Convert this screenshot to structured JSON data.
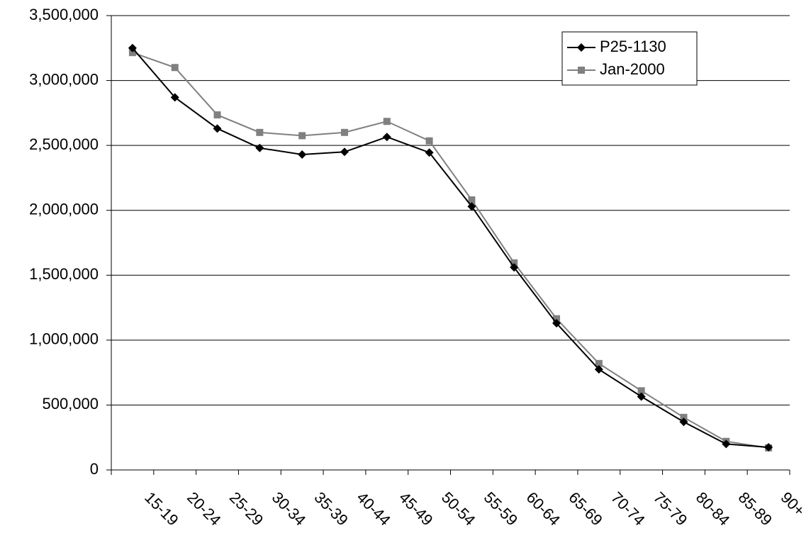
{
  "chart_data": {
    "type": "line",
    "categories": [
      "15-19",
      "20-24",
      "25-29",
      "30-34",
      "35-39",
      "40-44",
      "45-49",
      "50-54",
      "55-59",
      "60-64",
      "65-69",
      "70-74",
      "75-79",
      "80-84",
      "85-89",
      "90+"
    ],
    "series": [
      {
        "name": "P25-1130",
        "color": "#000000",
        "marker": "diamond",
        "values": [
          3250000,
          2870000,
          2630000,
          2480000,
          2430000,
          2450000,
          2565000,
          2445000,
          2030000,
          1560000,
          1130000,
          775000,
          565000,
          370000,
          200000,
          175000
        ]
      },
      {
        "name": "Jan-2000",
        "color": "#808080",
        "marker": "square",
        "values": [
          3215000,
          3100000,
          2735000,
          2600000,
          2575000,
          2600000,
          2685000,
          2535000,
          2080000,
          1595000,
          1165000,
          820000,
          610000,
          405000,
          220000,
          170000
        ]
      }
    ],
    "ylim": [
      0,
      3500000
    ],
    "yticks": [
      0,
      {
        "value": 500000,
        "label": "500,000"
      },
      {
        "value": 1000000,
        "label": "1,000,000"
      },
      {
        "value": 1500000,
        "label": "1,500,000"
      },
      {
        "value": 2000000,
        "label": "2,000,000"
      },
      {
        "value": 2500000,
        "label": "2,500,000"
      },
      {
        "value": 3000000,
        "label": "3,000,000"
      },
      {
        "value": 3500000,
        "label": "3,500,000"
      }
    ],
    "grid": true,
    "legend": "top-right"
  }
}
